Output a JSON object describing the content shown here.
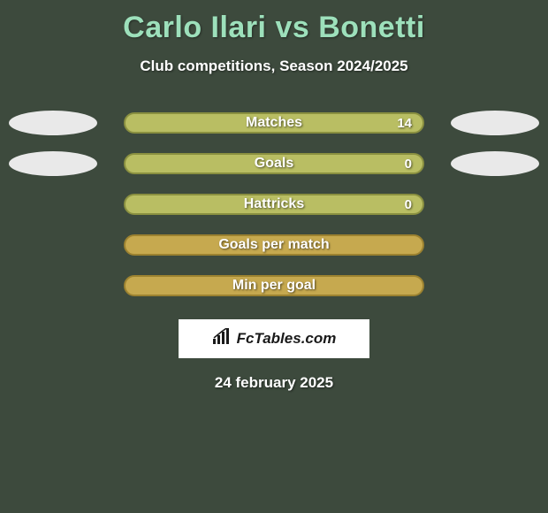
{
  "title": "Carlo Ilari vs Bonetti",
  "title_color": "#9de0bb",
  "title_fontsize": 34,
  "subtitle": "Club competitions, Season 2024/2025",
  "subtitle_color": "#ffffff",
  "subtitle_fontsize": 17,
  "background_color": "#3d4a3d",
  "ellipse_color": "#e9e9e9",
  "rows": [
    {
      "label": "Matches",
      "value": "14",
      "show_left_ellipse": true,
      "show_right_ellipse": true,
      "show_value": true,
      "fill": "#b9be63",
      "border": "#8a9040"
    },
    {
      "label": "Goals",
      "value": "0",
      "show_left_ellipse": true,
      "show_right_ellipse": true,
      "show_value": true,
      "fill": "#b9be63",
      "border": "#8a9040"
    },
    {
      "label": "Hattricks",
      "value": "0",
      "show_left_ellipse": false,
      "show_right_ellipse": false,
      "show_value": true,
      "fill": "#b9be63",
      "border": "#8a9040"
    },
    {
      "label": "Goals per match",
      "value": "",
      "show_left_ellipse": false,
      "show_right_ellipse": false,
      "show_value": false,
      "fill": "#c6a94f",
      "border": "#9c8230"
    },
    {
      "label": "Min per goal",
      "value": "",
      "show_left_ellipse": false,
      "show_right_ellipse": false,
      "show_value": false,
      "fill": "#c6a94f",
      "border": "#9c8230"
    }
  ],
  "bar_label_color": "#ffffff",
  "bar_label_fontsize": 16,
  "logo_text": "FcTables.com",
  "logo_bg": "#ffffff",
  "logo_text_color": "#1a1a1a",
  "date": "24 february 2025",
  "date_color": "#ffffff",
  "date_fontsize": 17
}
